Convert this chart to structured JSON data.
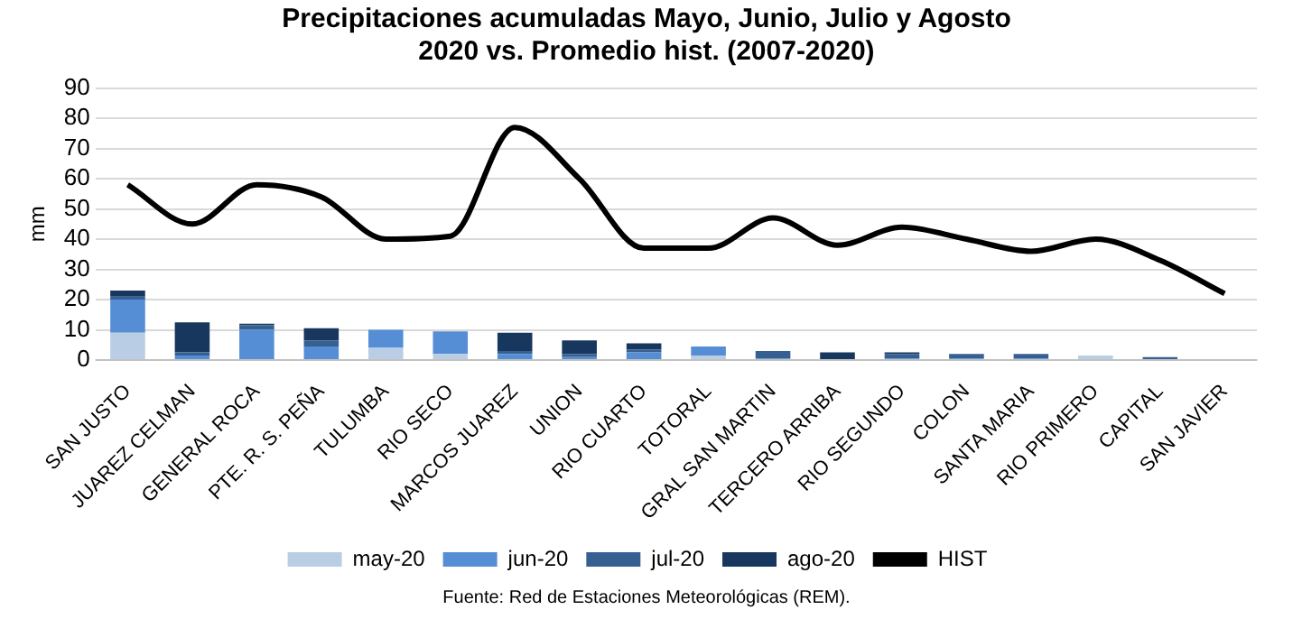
{
  "chart_data": {
    "type": "bar",
    "title": "Precipitaciones acumuladas Mayo, Junio, Julio y Agosto",
    "subtitle": "2020  vs. Promedio hist. (2007-2020)",
    "ylabel": "mm",
    "categories": [
      "SAN JUSTO",
      "JUAREZ CELMAN",
      "GENERAL ROCA",
      "PTE. R. S. PEÑA",
      "TULUMBA",
      "RIO SECO",
      "MARCOS JUAREZ",
      "UNION",
      "RIO CUARTO",
      "TOTORAL",
      "GRAL SAN MARTIN",
      "TERCERO ARRIBA",
      "RIO SEGUNDO",
      "COLON",
      "SANTA MARIA",
      "RIO PRIMERO",
      "CAPITAL",
      "SAN JAVIER"
    ],
    "stacked": true,
    "series": [
      {
        "name": "may-20",
        "color": "#b9cde5",
        "values": [
          9,
          null,
          0,
          null,
          4,
          2,
          null,
          null,
          null,
          1.5,
          0,
          0,
          0,
          0,
          0,
          1.5,
          0,
          0.3
        ]
      },
      {
        "name": "jun-20",
        "color": "#558ed5",
        "values": [
          11,
          1.5,
          10,
          4.5,
          6,
          7.5,
          2,
          1,
          2.5,
          3,
          0.5,
          0,
          0.5,
          0.5,
          0.5,
          0,
          0,
          0
        ]
      },
      {
        "name": "jul-20",
        "color": "#376092",
        "values": [
          1,
          1,
          1.5,
          2,
          0,
          0,
          1,
          1,
          1,
          0,
          2.5,
          0,
          1.5,
          1.5,
          1.5,
          0,
          1,
          0
        ]
      },
      {
        "name": "ago-20",
        "color": "#17375e",
        "values": [
          2,
          10,
          0.5,
          4,
          0,
          0,
          6,
          4.5,
          2,
          0,
          0,
          2.5,
          0.5,
          0,
          0,
          0,
          0,
          0
        ]
      },
      {
        "name": "HIST",
        "type": "line",
        "color": "#000000",
        "marker": "none",
        "values": [
          58,
          45,
          58,
          54,
          40,
          41,
          77,
          60,
          37,
          37,
          47,
          38,
          44,
          40,
          36,
          40,
          33,
          22
        ]
      }
    ],
    "ylim": [
      0,
      90
    ],
    "yticks": [
      0,
      10,
      20,
      30,
      40,
      50,
      60,
      70,
      80,
      90
    ],
    "grid": "y",
    "legend": "bottom",
    "annotations": [
      "Fuente: Red de Estaciones Meteorológicas (REM)."
    ]
  }
}
